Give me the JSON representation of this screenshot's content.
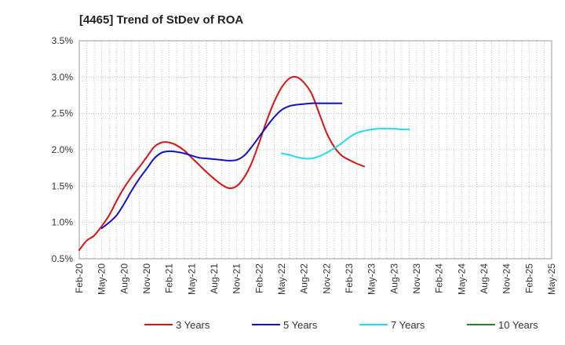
{
  "chart_data": {
    "type": "line",
    "title": "[4465]  Trend of StDev of ROA",
    "xlabel": "",
    "ylabel": "",
    "y_unit": "%",
    "ylim": [
      0.5,
      3.5
    ],
    "y_ticks": [
      "0.5%",
      "1.0%",
      "1.5%",
      "2.0%",
      "2.5%",
      "3.0%",
      "3.5%"
    ],
    "x_ticks": [
      "Feb-20",
      "May-20",
      "Aug-20",
      "Nov-20",
      "Feb-21",
      "May-21",
      "Aug-21",
      "Nov-21",
      "Feb-22",
      "May-22",
      "Aug-22",
      "Nov-22",
      "Feb-23",
      "May-23",
      "Aug-23",
      "Nov-23",
      "Feb-24",
      "May-24",
      "Aug-24",
      "Nov-24",
      "Feb-25",
      "May-25"
    ],
    "grid": true,
    "legend_position": "bottom",
    "series": [
      {
        "name": "3 Years",
        "color": "#dd1111",
        "start_index": 0,
        "values": [
          0.62,
          0.75,
          0.82,
          0.95,
          1.1,
          1.3,
          1.48,
          1.63,
          1.76,
          1.9,
          2.04,
          2.1,
          2.1,
          2.06,
          1.99,
          1.89,
          1.79,
          1.69,
          1.6,
          1.52,
          1.47,
          1.5,
          1.62,
          1.82,
          2.1,
          2.4,
          2.66,
          2.86,
          2.98,
          3.0,
          2.92,
          2.77,
          2.5,
          2.23,
          2.04,
          1.92,
          1.86,
          1.81,
          1.77
        ]
      },
      {
        "name": "5 Years",
        "color": "#1111cc",
        "start_index": 3,
        "values": [
          0.92,
          1.0,
          1.1,
          1.26,
          1.44,
          1.6,
          1.74,
          1.88,
          1.96,
          1.98,
          1.97,
          1.95,
          1.92,
          1.89,
          1.88,
          1.87,
          1.86,
          1.85,
          1.86,
          1.92,
          2.04,
          2.18,
          2.32,
          2.45,
          2.55,
          2.6,
          2.62,
          2.63,
          2.64,
          2.64,
          2.64,
          2.64,
          2.64
        ]
      },
      {
        "name": "7 Years",
        "color": "#22ddee",
        "start_index": 27,
        "values": [
          1.95,
          1.93,
          1.9,
          1.88,
          1.88,
          1.91,
          1.96,
          2.02,
          2.09,
          2.17,
          2.23,
          2.26,
          2.28,
          2.29,
          2.29,
          2.29,
          2.28,
          2.28
        ]
      },
      {
        "name": "10 Years",
        "color": "#228822",
        "start_index": 0,
        "values": []
      }
    ]
  }
}
